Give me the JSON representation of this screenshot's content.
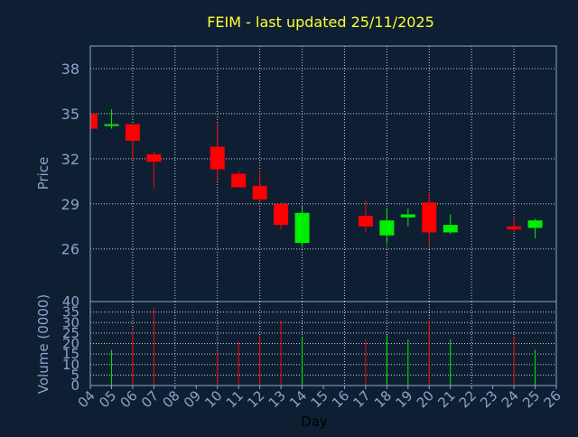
{
  "colors": {
    "background": "#0f1f33",
    "frame": "#8aa4c8",
    "grid": "#c8d4e4",
    "title": "#ffff33",
    "axis_text": "#8aa4c8",
    "day_label": "#000000",
    "up": "#00ee00",
    "down": "#ff0000"
  },
  "chart_data": {
    "type": "candlestick",
    "title": "FEIM - last updated 25/11/2025",
    "xlabel": "Day",
    "price_panel": {
      "ylabel": "Price",
      "ylim": [
        22.5,
        39.5
      ],
      "yticks": [
        26,
        29,
        32,
        35,
        38
      ],
      "grid": true
    },
    "volume_panel": {
      "ylabel": "Volume (0000)",
      "ylim": [
        0,
        40
      ],
      "yticks": [
        0,
        5,
        10,
        15,
        20,
        25,
        30,
        35,
        40
      ],
      "grid": true
    },
    "x_ticks": [
      "04",
      "05",
      "06",
      "07",
      "08",
      "09",
      "10",
      "11",
      "12",
      "13",
      "14",
      "15",
      "16",
      "17",
      "18",
      "19",
      "20",
      "21",
      "22",
      "23",
      "24",
      "25",
      "26"
    ],
    "candles": [
      {
        "day": "04",
        "open": 35.0,
        "high": 35.0,
        "low": 34.0,
        "close": 34.0,
        "volume": 0
      },
      {
        "day": "05",
        "open": 34.2,
        "high": 35.3,
        "low": 34.0,
        "close": 34.3,
        "volume": 17
      },
      {
        "day": "06",
        "open": 34.3,
        "high": 34.3,
        "low": 32.0,
        "close": 33.2,
        "volume": 26
      },
      {
        "day": "07",
        "open": 32.3,
        "high": 32.5,
        "low": 30.0,
        "close": 31.8,
        "volume": 37
      },
      {
        "day": "10",
        "open": 32.8,
        "high": 34.4,
        "low": 30.5,
        "close": 31.3,
        "volume": 16
      },
      {
        "day": "11",
        "open": 31.0,
        "high": 31.2,
        "low": 30.1,
        "close": 30.1,
        "volume": 21
      },
      {
        "day": "12",
        "open": 30.2,
        "high": 31.2,
        "low": 29.0,
        "close": 29.3,
        "volume": 24
      },
      {
        "day": "13",
        "open": 29.0,
        "high": 29.1,
        "low": 27.3,
        "close": 27.6,
        "volume": 31
      },
      {
        "day": "14",
        "open": 26.4,
        "high": 28.8,
        "low": 26.2,
        "close": 28.4,
        "volume": 23
      },
      {
        "day": "17",
        "open": 28.2,
        "high": 29.2,
        "low": 27.1,
        "close": 27.5,
        "volume": 22
      },
      {
        "day": "18",
        "open": 26.9,
        "high": 28.7,
        "low": 26.4,
        "close": 27.9,
        "volume": 24
      },
      {
        "day": "19",
        "open": 28.1,
        "high": 28.7,
        "low": 27.5,
        "close": 28.3,
        "volume": 22
      },
      {
        "day": "20",
        "open": 29.1,
        "high": 29.8,
        "low": 26.2,
        "close": 27.1,
        "volume": 31
      },
      {
        "day": "21",
        "open": 27.1,
        "high": 28.3,
        "low": 27.0,
        "close": 27.6,
        "volume": 22
      },
      {
        "day": "24",
        "open": 27.5,
        "high": 28.0,
        "low": 27.1,
        "close": 27.3,
        "volume": 23
      },
      {
        "day": "25",
        "open": 27.4,
        "high": 28.0,
        "low": 26.7,
        "close": 27.9,
        "volume": 17
      }
    ]
  }
}
